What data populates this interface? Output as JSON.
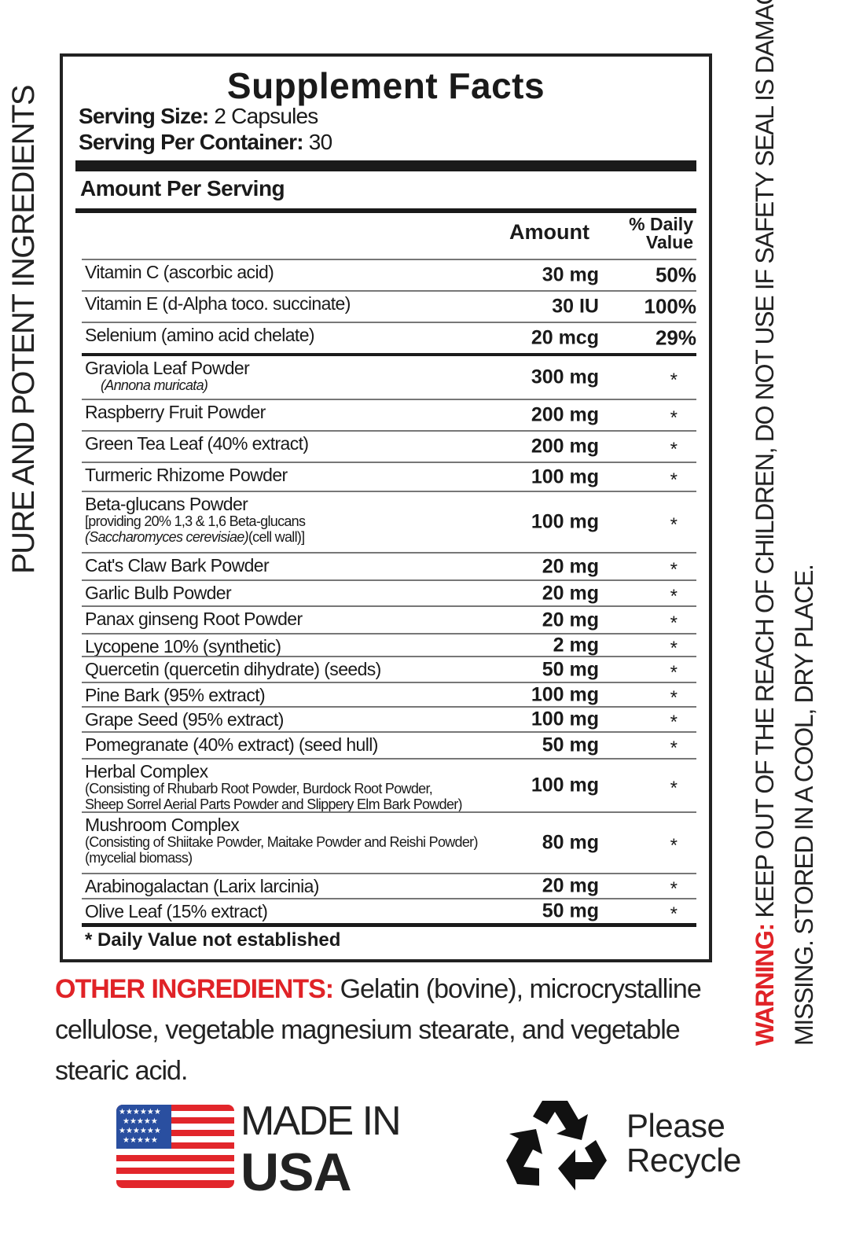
{
  "side_left": "PURE AND POTENT INGREDIENTS",
  "warning": {
    "label": "WARNING:",
    "line1": "KEEP OUT OF THE REACH OF CHILDREN, DO NOT USE IF SAFETY SEAL IS DAMAGED OR",
    "line2": "MISSING. STORED IN A COOL, DRY PLACE.",
    "color": "#e02327"
  },
  "facts": {
    "title": "Supplement Facts",
    "serving_size_label": "Serving Size:",
    "serving_size": "2 Capsules",
    "servings_label": "Serving Per Container:",
    "servings": "30",
    "amount_per_serving": "Amount Per Serving",
    "col_amount": "Amount",
    "col_dv_1": "% Daily",
    "col_dv_2": "Value",
    "rows": [
      {
        "name": "Vitamin C (ascorbic acid)",
        "amount": "30 mg",
        "dv": "50%"
      },
      {
        "name": "Vitamin E (d-Alpha toco. succinate)",
        "amount": "30 IU",
        "dv": "100%"
      },
      {
        "name": "Selenium (amino acid chelate)",
        "amount": "20 mcg",
        "dv": "29%"
      },
      {
        "name": "Graviola Leaf Powder",
        "sub_italic": "(Annona muricata)",
        "amount": "300 mg",
        "dv": "*"
      },
      {
        "name": "Raspberry Fruit Powder",
        "amount": "200 mg",
        "dv": "*"
      },
      {
        "name": "Green Tea Leaf (40% extract)",
        "amount": "200 mg",
        "dv": "*"
      },
      {
        "name": "Turmeric Rhizome Powder",
        "amount": "100 mg",
        "dv": "*"
      },
      {
        "name": "Beta-glucans Powder",
        "sub": "[providing 20% 1,3 & 1,6 Beta-glucans",
        "sub2_italic": "(Saccharomyces cerevisiae)",
        "sub2": "(cell wall)]",
        "amount": "100 mg",
        "dv": "*"
      },
      {
        "name": "Cat's Claw Bark Powder",
        "amount": "20 mg",
        "dv": "*"
      },
      {
        "name": "Garlic Bulb Powder",
        "amount": "20 mg",
        "dv": "*"
      },
      {
        "name": "Panax ginseng Root Powder",
        "amount": "20 mg",
        "dv": "*"
      },
      {
        "name": "Lycopene 10% (synthetic)",
        "amount": "2 mg",
        "dv": "*"
      },
      {
        "name": "Quercetin (quercetin dihydrate) (seeds)",
        "amount": "50 mg",
        "dv": "*"
      },
      {
        "name": "Pine Bark (95% extract)",
        "amount": "100 mg",
        "dv": "*"
      },
      {
        "name": "Grape Seed (95% extract)",
        "amount": "100 mg",
        "dv": "*"
      },
      {
        "name": "Pomegranate (40% extract) (seed hull)",
        "amount": "50 mg",
        "dv": "*"
      },
      {
        "name": "Herbal Complex",
        "sub": "(Consisting of Rhubarb Root Powder, Burdock Root Powder,",
        "sub2": "Sheep Sorrel Aerial Parts Powder and Slippery Elm Bark Powder)",
        "amount": "100 mg",
        "dv": "*"
      },
      {
        "name": "Mushroom Complex",
        "sub": "(Consisting of Shiitake Powder, Maitake Powder and Reishi Powder)",
        "sub2": "(mycelial biomass)",
        "amount": "80 mg",
        "dv": "*"
      },
      {
        "name": "Arabinogalactan (Larix larcinia)",
        "amount": "20 mg",
        "dv": "*"
      },
      {
        "name": "Olive Leaf (15% extract)",
        "amount": "50 mg",
        "dv": "*"
      }
    ],
    "footnote": "* Daily Value not established"
  },
  "other_ingredients": {
    "label": "OTHER INGREDIENTS:",
    "text": " Gelatin (bovine), microcrystalline cellulose, vegetable magnesium stearate, and vegetable stearic acid."
  },
  "made_in": {
    "line1": "MADE IN",
    "line2": "USA"
  },
  "recycle": {
    "line1": "Please",
    "line2": "Recycle"
  }
}
